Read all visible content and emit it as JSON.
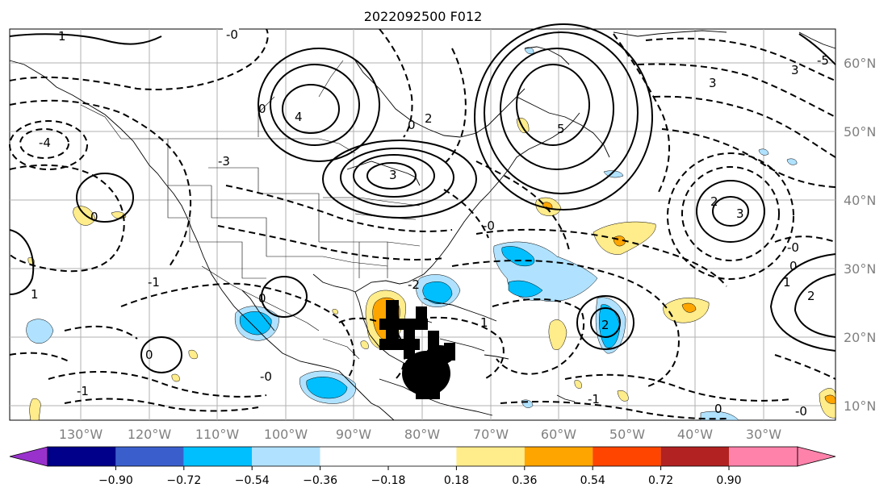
{
  "title": "2022092500 F012",
  "map": {
    "lon_labels": [
      "130°W",
      "120°W",
      "110°W",
      "100°W",
      "90°W",
      "80°W",
      "70°W",
      "60°W",
      "50°W",
      "40°W",
      "30°W"
    ],
    "lat_labels": [
      "60°N",
      "50°N",
      "40°N",
      "30°N",
      "20°N",
      "10°N"
    ],
    "contour_labels": [
      "-0",
      "-1",
      "-4",
      "-3",
      "-2",
      "0",
      "1",
      "2",
      "3",
      "4",
      "5",
      "-5"
    ]
  },
  "colorbar": {
    "labels": [
      "−0.90",
      "−0.72",
      "−0.54",
      "−0.36",
      "−0.18",
      "0.18",
      "0.36",
      "0.54",
      "0.72",
      "0.90"
    ],
    "colors": [
      "#9932cc",
      "#00008b",
      "#3a5fcd",
      "#00bfff",
      "#b0e2ff",
      "#ffffff",
      "#ffec8b",
      "#ffa500",
      "#ff4500",
      "#b22222",
      "#ff82ab"
    ]
  },
  "colors": {
    "light_blue": "#b0e2ff",
    "sky_blue": "#00bfff",
    "light_yellow": "#ffec8b",
    "orange": "#ffa500",
    "black_marks": "#000000"
  }
}
